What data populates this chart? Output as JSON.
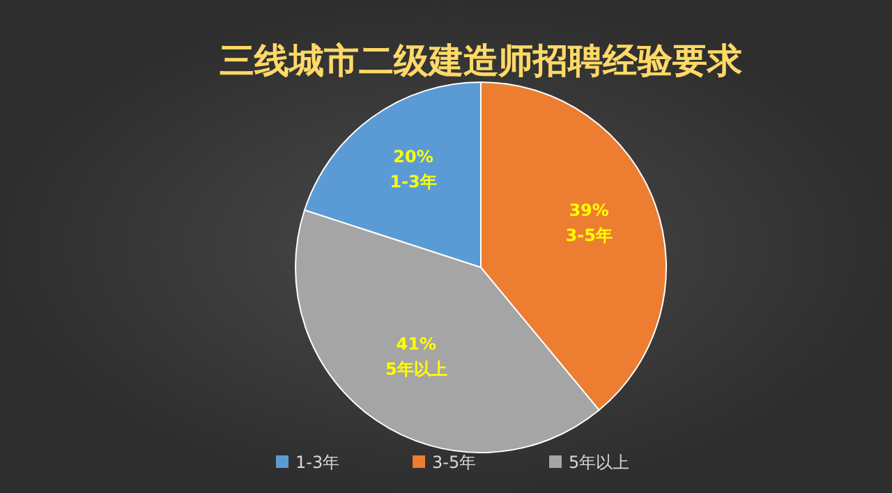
{
  "chart_data": {
    "type": "pie",
    "title": "三线城市二级建造师招聘经验要求",
    "categories": [
      "1-3年",
      "3-5年",
      "5年以上"
    ],
    "values": [
      20,
      39,
      41
    ],
    "colors": [
      "#5b9bd5",
      "#ed7d31",
      "#a5a5a5"
    ],
    "value_labels": [
      "20%",
      "39%",
      "41%"
    ],
    "legend": "bottom"
  }
}
